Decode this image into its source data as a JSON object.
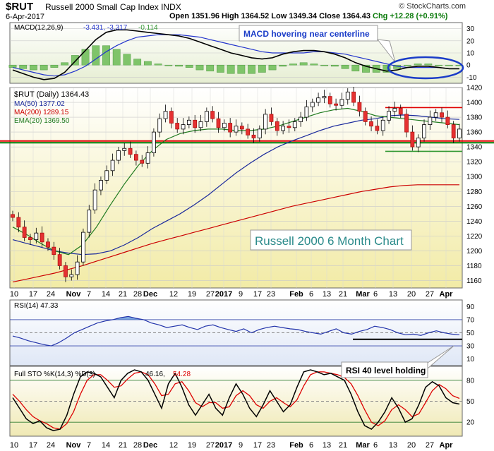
{
  "header": {
    "symbol": "$RUT",
    "name": "Russell 2000 Small Cap Index INDX",
    "source": "© StockCharts.com",
    "date": "6-Apr-2017",
    "ohlc": "Open 1351.96  High 1364.52  Low 1349.34  Close 1364.43",
    "change": "Chg +12.28 (+0.91%)"
  },
  "chart_data": [
    {
      "type": "line",
      "panel": "macd",
      "title": "MACD(12,26,9) -3.431, -3.317, -0.114",
      "legend": {
        "macd": "MACD(12,26,9)",
        "values": "-3.431, -3.317",
        "hist": "-0.114"
      },
      "annotation": "MACD hovering near centerline",
      "ylim": [
        -15,
        35
      ],
      "yticks": [
        30,
        20,
        10,
        0,
        -10
      ],
      "series": [
        {
          "name": "MACD",
          "color": "#000000",
          "values": [
            -4,
            -7,
            -10,
            -12,
            -11,
            -6,
            3,
            12,
            21,
            27,
            29,
            29,
            28,
            27,
            26,
            25,
            24,
            22,
            19,
            16,
            13,
            10,
            8,
            6,
            5,
            6,
            9,
            11,
            12,
            12,
            11,
            9,
            6,
            2,
            -1,
            -3,
            -5,
            -4,
            -2,
            -1,
            -1,
            -2,
            -3,
            -3
          ]
        },
        {
          "name": "Signal",
          "color": "#2233cc",
          "values": [
            -2,
            -4,
            -6,
            -8,
            -9,
            -8,
            -5,
            -1,
            5,
            11,
            16,
            20,
            23,
            24,
            25,
            25,
            25,
            24,
            23,
            21,
            19,
            17,
            15,
            13,
            11,
            10,
            10,
            10,
            10,
            11,
            11,
            10,
            9,
            7,
            5,
            3,
            1,
            -1,
            -2,
            -2,
            -2,
            -2,
            -3,
            -3
          ]
        }
      ]
    },
    {
      "type": "candlestick",
      "panel": "price",
      "title": "$RUT (Daily) 1364.43",
      "ylim": [
        1150,
        1420
      ],
      "yticks": [
        1420,
        1400,
        1380,
        1360,
        1340,
        1320,
        1300,
        1280,
        1260,
        1240,
        1220,
        1200,
        1180,
        1160
      ],
      "annotation": "Russell 2000 6 Month Chart",
      "series": [
        {
          "name": "MA(50) 1377.02",
          "color": "#1b2a9c",
          "values": [
            1215,
            1210,
            1205,
            1200,
            1197,
            1195,
            1196,
            1200,
            1208,
            1218,
            1230,
            1240,
            1250,
            1262,
            1275,
            1290,
            1305,
            1318,
            1330,
            1340,
            1348,
            1355,
            1362,
            1368,
            1372,
            1376,
            1378,
            1382,
            1383,
            1382,
            1380,
            1378,
            1377
          ]
        },
        {
          "name": "MA(200) 1289.15",
          "color": "#cc0000",
          "values": [
            1158,
            1162,
            1166,
            1170,
            1175,
            1180,
            1186,
            1192,
            1198,
            1204,
            1210,
            1215,
            1220,
            1225,
            1230,
            1235,
            1240,
            1245,
            1250,
            1255,
            1260,
            1264,
            1268,
            1272,
            1276,
            1280,
            1283,
            1286,
            1288,
            1289,
            1289,
            1289,
            1289
          ]
        },
        {
          "name": "EMA(20) 1369.50",
          "color": "#1f7a1f",
          "values": [
            1232,
            1222,
            1210,
            1200,
            1195,
            1208,
            1232,
            1262,
            1290,
            1315,
            1335,
            1350,
            1358,
            1362,
            1364,
            1364,
            1362,
            1362,
            1364,
            1368,
            1374,
            1380,
            1386,
            1390,
            1392,
            1388,
            1382,
            1380,
            1378,
            1376,
            1374,
            1372,
            1370
          ]
        }
      ],
      "closes": [
        1245,
        1232,
        1218,
        1215,
        1224,
        1212,
        1205,
        1195,
        1180,
        1165,
        1168,
        1185,
        1225,
        1255,
        1282,
        1295,
        1308,
        1322,
        1335,
        1338,
        1330,
        1322,
        1318,
        1332,
        1360,
        1378,
        1388,
        1372,
        1364,
        1370,
        1376,
        1366,
        1374,
        1388,
        1378,
        1366,
        1372,
        1360,
        1368,
        1364,
        1356,
        1352,
        1364,
        1384,
        1374,
        1362,
        1368,
        1366,
        1374,
        1380,
        1394,
        1400,
        1406,
        1408,
        1398,
        1396,
        1404,
        1414,
        1400,
        1388,
        1374,
        1368,
        1362,
        1376,
        1388,
        1392,
        1384,
        1360,
        1340,
        1352,
        1370,
        1380,
        1386,
        1380,
        1370,
        1352,
        1364
      ],
      "hlines": [
        {
          "value": 1347,
          "color": "#e00000"
        },
        {
          "value": 1347,
          "color": "#007700"
        },
        {
          "value": 1393,
          "color": "#e00000"
        },
        {
          "value": 1334,
          "color": "#339933"
        }
      ]
    },
    {
      "type": "line",
      "panel": "rsi",
      "title": "RSI(14) 47.33",
      "ylim": [
        0,
        100
      ],
      "yticks": [
        90,
        70,
        50,
        30,
        10
      ],
      "annotation": "RSI 40 level holding",
      "series": [
        {
          "name": "RSI(14)",
          "color": "#2233aa",
          "values": [
            45,
            42,
            38,
            35,
            32,
            30,
            35,
            42,
            50,
            55,
            60,
            65,
            68,
            70,
            73,
            75,
            72,
            70,
            65,
            62,
            58,
            60,
            62,
            58,
            55,
            60,
            62,
            58,
            55,
            52,
            56,
            50,
            55,
            58,
            60,
            58,
            56,
            55,
            52,
            50,
            48,
            52,
            56,
            50,
            48,
            52,
            55,
            60,
            58,
            55,
            50,
            47,
            48,
            46,
            50,
            53,
            50,
            48,
            47
          ]
        }
      ],
      "hlines": [
        70,
        30,
        50,
        40
      ]
    },
    {
      "type": "line",
      "panel": "stoch",
      "title": "Full STO %K(14,3) %D(3) 46.16, 54.28",
      "legend": {
        "label": "Full STO %K(14,3) %D(3)",
        "k": "46.16,",
        "d": "54.28"
      },
      "ylim": [
        0,
        100
      ],
      "yticks": [
        80,
        50,
        20
      ],
      "series": [
        {
          "name": "%K",
          "color": "#000000",
          "values": [
            55,
            40,
            25,
            18,
            22,
            12,
            8,
            10,
            30,
            60,
            85,
            92,
            90,
            85,
            70,
            55,
            80,
            90,
            95,
            92,
            80,
            60,
            40,
            75,
            90,
            70,
            45,
            30,
            45,
            60,
            40,
            30,
            55,
            75,
            60,
            40,
            28,
            45,
            65,
            50,
            35,
            45,
            70,
            92,
            95,
            92,
            88,
            90,
            85,
            80,
            60,
            35,
            15,
            10,
            20,
            35,
            55,
            40,
            20,
            25,
            45,
            70,
            78,
            72,
            55,
            48,
            46
          ]
        },
        {
          "name": "%D",
          "color": "#dd0000",
          "values": [
            60,
            50,
            38,
            28,
            22,
            18,
            12,
            10,
            18,
            35,
            60,
            80,
            88,
            88,
            80,
            70,
            72,
            82,
            90,
            92,
            88,
            75,
            58,
            60,
            75,
            78,
            65,
            48,
            42,
            48,
            48,
            40,
            42,
            58,
            65,
            58,
            45,
            40,
            50,
            55,
            48,
            42,
            52,
            72,
            88,
            92,
            92,
            90,
            88,
            84,
            75,
            58,
            38,
            20,
            15,
            22,
            38,
            45,
            38,
            28,
            32,
            48,
            65,
            74,
            68,
            58,
            54
          ]
        }
      ]
    }
  ],
  "xaxis": {
    "ticks": [
      "10",
      "17",
      "24",
      "Nov",
      "7",
      "14",
      "21",
      "28",
      "Dec",
      "12",
      "19",
      "27",
      "2017",
      "9",
      "17",
      "23",
      "Feb",
      "6",
      "13",
      "21",
      "Mar",
      "6",
      "13",
      "20",
      "27",
      "Apr"
    ]
  }
}
